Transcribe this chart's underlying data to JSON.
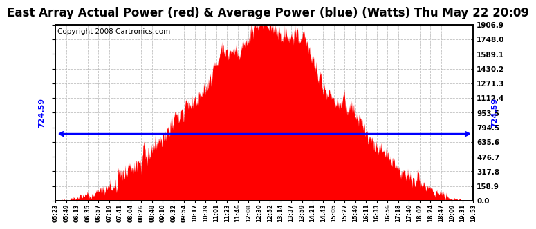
{
  "title": "East Array Actual Power (red) & Average Power (blue) (Watts) Thu May 22 20:09",
  "copyright": "Copyright 2008 Cartronics.com",
  "avg_power": 724.59,
  "ymax": 1906.9,
  "ymin": 0.0,
  "yticks": [
    0.0,
    158.9,
    317.8,
    476.7,
    635.6,
    794.5,
    953.5,
    1112.4,
    1271.3,
    1430.2,
    1589.1,
    1748.0,
    1906.9
  ],
  "xtick_labels": [
    "05:23",
    "05:49",
    "06:13",
    "06:35",
    "06:57",
    "07:19",
    "07:41",
    "08:04",
    "08:26",
    "08:48",
    "09:10",
    "09:32",
    "09:54",
    "10:17",
    "10:39",
    "11:01",
    "11:23",
    "11:46",
    "12:08",
    "12:30",
    "12:52",
    "13:14",
    "13:37",
    "13:59",
    "14:21",
    "14:43",
    "15:05",
    "15:27",
    "15:49",
    "16:11",
    "16:33",
    "16:56",
    "17:18",
    "17:40",
    "18:02",
    "18:24",
    "18:47",
    "19:09",
    "19:31",
    "19:53"
  ],
  "bar_color": "#FF0000",
  "line_color": "#0000FF",
  "background_color": "#FFFFFF",
  "grid_color": "#AAAAAA",
  "title_fontsize": 12,
  "copyright_fontsize": 7.5,
  "peak_time": 12.7,
  "sigma": 2.4,
  "seed": 12345
}
